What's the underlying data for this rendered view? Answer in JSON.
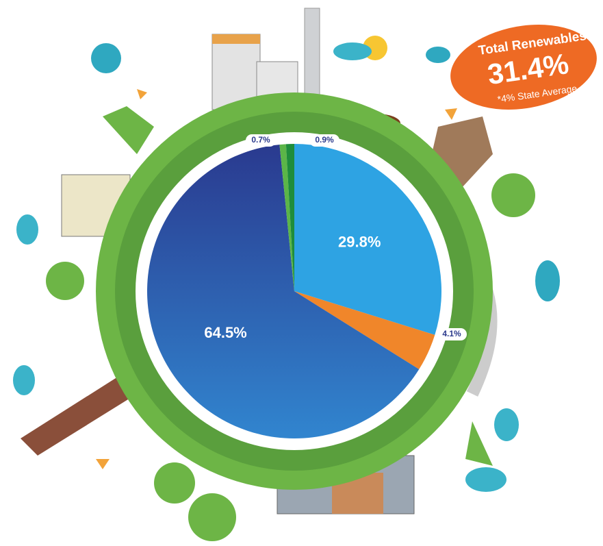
{
  "chart_data": {
    "type": "pie",
    "values": [
      29.8,
      4.1,
      64.5,
      0.7,
      0.9
    ],
    "value_labels": [
      "29.8%",
      "4.1%",
      "64.5%",
      "0.7%",
      "0.9%"
    ],
    "colors": [
      "#2ea3e3",
      "#f0862a",
      "#2f63b8",
      "#5bb548",
      "#1f8d3c"
    ],
    "badge": {
      "title": "Total Renewables",
      "value": "31.4%",
      "note": "*4% State Average"
    }
  }
}
